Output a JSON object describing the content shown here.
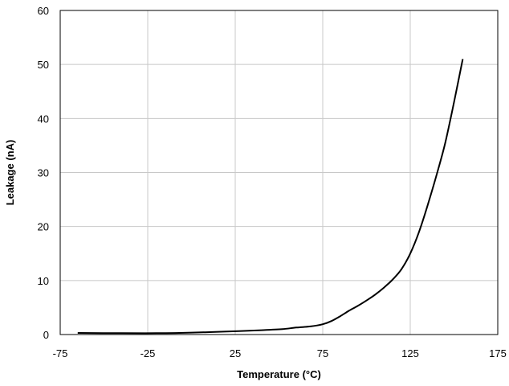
{
  "chart_data": {
    "type": "line",
    "title": "",
    "xlabel": "Temperature (°C)",
    "ylabel": "Leakage (nA)",
    "xlim": [
      -75,
      175
    ],
    "ylim": [
      0,
      60
    ],
    "x_ticks": [
      -75,
      -25,
      25,
      75,
      125,
      175
    ],
    "y_ticks": [
      0,
      10,
      20,
      30,
      40,
      50,
      60
    ],
    "grid": true,
    "legend": "none",
    "series": [
      {
        "color": "#000000",
        "points": [
          [
            -65,
            0.3
          ],
          [
            -40,
            0.25
          ],
          [
            -20,
            0.25
          ],
          [
            0,
            0.35
          ],
          [
            20,
            0.55
          ],
          [
            40,
            0.8
          ],
          [
            52,
            1.0
          ],
          [
            60,
            1.3
          ],
          [
            68,
            1.5
          ],
          [
            75,
            1.9
          ],
          [
            80,
            2.5
          ],
          [
            85,
            3.4
          ],
          [
            90,
            4.4
          ],
          [
            95,
            5.3
          ],
          [
            100,
            6.3
          ],
          [
            105,
            7.4
          ],
          [
            110,
            8.7
          ],
          [
            115,
            10.2
          ],
          [
            120,
            12.1
          ],
          [
            125,
            15.0
          ],
          [
            130,
            19.0
          ],
          [
            135,
            24.0
          ],
          [
            140,
            29.5
          ],
          [
            145,
            35.5
          ],
          [
            150,
            43.0
          ],
          [
            155,
            51.0
          ]
        ]
      }
    ]
  }
}
